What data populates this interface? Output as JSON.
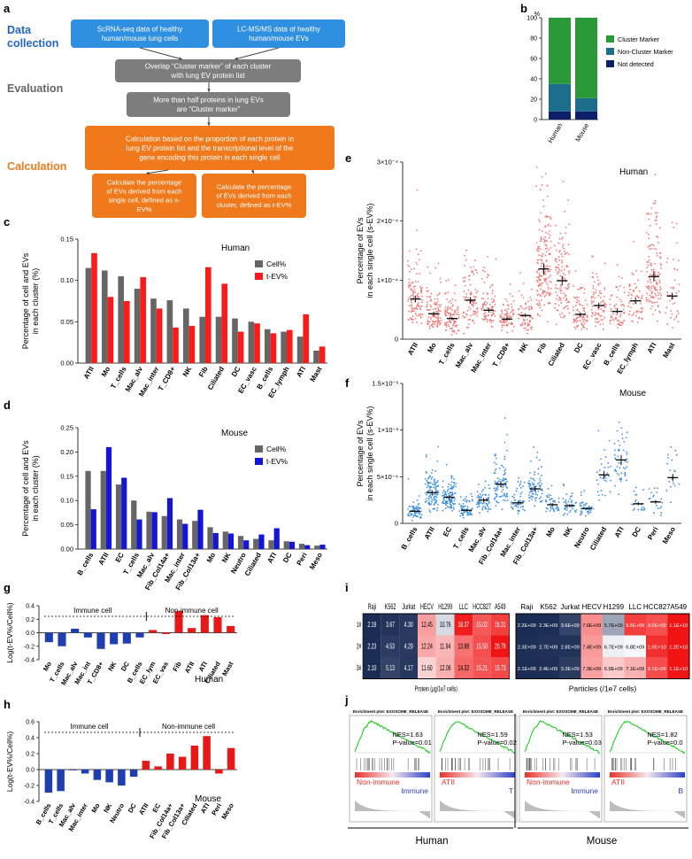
{
  "panel_letters": [
    "a",
    "b",
    "c",
    "d",
    "e",
    "f",
    "g",
    "h",
    "i",
    "j"
  ],
  "colors": {
    "blue_box": "#2f8fe0",
    "gray_box": "#7d7d7d",
    "orange_box": "#f07a1b",
    "label_blue": "#2166c2",
    "label_gray": "#666666",
    "label_orange": "#f07a1b",
    "cell_gray": "#666666",
    "tev_red": "#ff1a1a",
    "tev_blue": "#1515d6",
    "dot_red": "#f07a7a",
    "dot_blue": "#3d8fe0",
    "marker_green": "#2a9a38",
    "nonmarker_teal": "#1b6f8a",
    "notdetected_navy": "#0d1f6b",
    "bar_blue": "#1f3fb0",
    "bar_red": "#e81818",
    "gsea_green": "#1fcc1f"
  },
  "flow": {
    "stage_data_collection": "Data\ncollection",
    "stage_evaluation": "Evaluation",
    "stage_calculation": "Calculation",
    "box_scrna": "ScRNA-seq data of healthy\nhuman/mouse lung cells",
    "box_lcms": "LC-MS/MS  data of healthy\nhuman/mouse EVs",
    "box_overlap": "Overlap “Cluster marker” of each cluster\nwith lung EV protein list",
    "box_half": "More than half proteins in lung EVs\nare “Cluster marker”",
    "box_calc": "Calculation based on the proportion of each protein in\nlung EV protein list and the transcriptional level of the\ngene encoding this protein in each single cell",
    "box_sev": "Calculate the percentage\nof EVs derived from each\nsingle cell, defined as s-\nEV%",
    "box_tev": "Calculate the percentage\nof EVs derived from each\ncluster, defined as t-EV%"
  },
  "chart_data": [
    {
      "panel": "b",
      "type": "bar",
      "stacked": true,
      "ylabel": "%",
      "yticks": [
        "0",
        "20",
        "40",
        "60",
        "80",
        "100"
      ],
      "ylim": [
        0,
        100
      ],
      "categories": [
        "Human",
        "Mouse"
      ],
      "series": [
        {
          "name": "Not detected",
          "values": [
            8,
            8
          ]
        },
        {
          "name": "Non-Cluster Marker",
          "values": [
            27,
            13
          ]
        },
        {
          "name": "Cluster Marker",
          "values": [
            65,
            79
          ]
        }
      ],
      "legend": [
        "Cluster Marker",
        "Non-Cluster Marker",
        "Not detected"
      ]
    },
    {
      "panel": "c",
      "type": "bar",
      "title": "Human",
      "ylabel": "Percentage of cell and EVs\nin each cluster (%)",
      "yticks": [
        "0.00",
        "0.05",
        "0.10",
        "0.15"
      ],
      "ylim": [
        0,
        0.15
      ],
      "categories": [
        "ATII",
        "Mo",
        "T_cells",
        "Mac_alv",
        "Mac_inter",
        "T_CD8+",
        "NK",
        "Fib",
        "Ciliated",
        "DC",
        "EC_vasc",
        "B_cells",
        "EC_lymph",
        "ATI",
        "Mast"
      ],
      "series": [
        {
          "name": "Cell%",
          "values": [
            0.115,
            0.112,
            0.105,
            0.09,
            0.078,
            0.076,
            0.066,
            0.056,
            0.056,
            0.054,
            0.05,
            0.041,
            0.038,
            0.032,
            0.015
          ]
        },
        {
          "name": "t-EV%",
          "values": [
            0.133,
            0.08,
            0.075,
            0.104,
            0.066,
            0.043,
            0.045,
            0.116,
            0.096,
            0.038,
            0.048,
            0.036,
            0.04,
            0.059,
            0.02
          ]
        }
      ]
    },
    {
      "panel": "d",
      "type": "bar",
      "title": "Mouse",
      "ylabel": "Percentage of cell and EVs\nin each cluster (%)",
      "yticks": [
        "0.00",
        "0.05",
        "0.10",
        "0.15",
        "0.20",
        "0.25"
      ],
      "ylim": [
        0,
        0.25
      ],
      "categories": [
        "B_cells",
        "ATII",
        "EC",
        "T_cells",
        "Mac_alv",
        "Fib_Col14a+",
        "Mac_inter",
        "Fib_Col13a+",
        "Mo",
        "NK",
        "Neutro",
        "Ciliated",
        "ATI",
        "DC",
        "Peri",
        "Meso"
      ],
      "series": [
        {
          "name": "Cell%",
          "values": [
            0.161,
            0.161,
            0.133,
            0.1,
            0.077,
            0.068,
            0.061,
            0.058,
            0.045,
            0.036,
            0.027,
            0.021,
            0.018,
            0.016,
            0.011,
            0.007
          ]
        },
        {
          "name": "t-EV%",
          "values": [
            0.082,
            0.21,
            0.147,
            0.061,
            0.076,
            0.105,
            0.052,
            0.081,
            0.033,
            0.032,
            0.018,
            0.03,
            0.043,
            0.015,
            0.008,
            0.009
          ]
        }
      ]
    },
    {
      "panel": "e",
      "type": "scatter",
      "title": "Human",
      "ylabel": "Percentage of EVs\nin each single cell (s-EV%)",
      "yticks": [
        "0",
        "1×10⁻⁴",
        "2×10⁻⁴",
        "3×10⁻⁴"
      ],
      "ylim": [
        0,
        0.0003
      ],
      "categories": [
        "ATII",
        "Mo",
        "T_cells",
        "Mac_alv",
        "Mac_inter",
        "T_CD8+",
        "NK",
        "Fib",
        "Ciliated",
        "DC",
        "EC_vasc",
        "B_cells",
        "EC_lymph",
        "ATI",
        "Mast"
      ],
      "means": [
        6.8e-05,
        4.3e-05,
        3.5e-05,
        6.6e-05,
        4.9e-05,
        3.4e-05,
        4e-05,
        0.000119,
        9.9e-05,
        4.2e-05,
        5.7e-05,
        4.7e-05,
        6.5e-05,
        0.000106,
        7.3e-05
      ]
    },
    {
      "panel": "f",
      "type": "scatter",
      "title": "Mouse",
      "ylabel": "Percentage of EVs\nin each single cell (s-EV%)",
      "yticks": [
        "0",
        "5×10⁻⁴",
        "1×10⁻³",
        "1.5×10⁻³"
      ],
      "ylim": [
        0,
        0.0015
      ],
      "categories": [
        "B_cells",
        "ATII",
        "EC",
        "T_cells",
        "Mac_alv",
        "Fib_Col14a+",
        "Mac_inter",
        "Fib_Col13a+",
        "Mo",
        "NK",
        "Neutro",
        "Ciliated",
        "ATI",
        "DC",
        "Peri",
        "Meso"
      ],
      "means": [
        0.00013,
        0.00033,
        0.00028,
        0.00014,
        0.00025,
        0.00042,
        0.00022,
        0.00037,
        0.0002,
        0.00019,
        0.00016,
        0.00052,
        0.00068,
        0.00021,
        0.00023,
        0.00049
      ]
    },
    {
      "panel": "g",
      "type": "bar",
      "title": "Human",
      "ylabel": "Log(t-EV%/Cell%)",
      "yticks": [
        "-0.4",
        "-0.2",
        "0.0",
        "0.2",
        "0.4"
      ],
      "ylim": [
        -0.4,
        0.4
      ],
      "group_labels": [
        "Immune cell",
        "Non-immune cell"
      ],
      "categories": [
        "Mo",
        "T_cells",
        "Mac_alv",
        "Mac_int",
        "T_CD8+",
        "NK",
        "DC",
        "B_cells",
        "EC_lym",
        "EC_vas",
        "Fib",
        "ATII",
        "ATI",
        "Ciliated",
        "Mast"
      ],
      "values": [
        -0.14,
        -0.2,
        0.06,
        -0.07,
        -0.24,
        -0.17,
        -0.16,
        -0.07,
        0.04,
        -0.02,
        0.32,
        0.07,
        0.26,
        0.23,
        0.1
      ]
    },
    {
      "panel": "h",
      "type": "bar",
      "title": "Mouse",
      "ylabel": "Log(t-EV%/Cell%)",
      "yticks": [
        "-0.4",
        "-0.2",
        "0.0",
        "0.2",
        "0.4",
        "0.6"
      ],
      "ylim": [
        -0.4,
        0.6
      ],
      "group_labels": [
        "Immune cell",
        "Non-immune cell"
      ],
      "categories": [
        "B_cells",
        "T_cells",
        "Mac_alv",
        "Mac_inter",
        "Mo",
        "NK",
        "Neutro",
        "DC",
        "ATII",
        "EC",
        "Fib_Col14a+",
        "Fib_Col13a+",
        "Ciliated",
        "ATI",
        "Peri",
        "Meso"
      ],
      "values": [
        -0.29,
        -0.27,
        -0.01,
        -0.05,
        -0.13,
        -0.16,
        -0.2,
        -0.09,
        0.11,
        0.04,
        0.2,
        0.16,
        0.3,
        0.42,
        -0.05,
        0.27
      ]
    },
    {
      "panel": "i",
      "type": "heatmap",
      "columns": [
        "Raji",
        "K562",
        "Jurkat",
        "HECV",
        "H1299",
        "LLC",
        "HCC827",
        "A549"
      ],
      "rows": [
        "1#",
        "2#",
        "3#"
      ],
      "protein": {
        "label": "Protein (μg/1e7 cells)",
        "values": [
          [
            "2.19",
            "3.67",
            "4.30",
            "12.45",
            "10.76",
            "18.37",
            "15.02",
            "16.31"
          ],
          [
            "2.23",
            "4.53",
            "4.29",
            "12.24",
            "11.94",
            "13.88",
            "15.50",
            "20.78"
          ],
          [
            "2.10",
            "5.13",
            "4.17",
            "11.60",
            "12.06",
            "14.32",
            "15.21",
            "15.73"
          ]
        ]
      },
      "particles": {
        "label": "Particles (/1e7 cells)",
        "values": [
          [
            "2.2E+09",
            "2.3E+09",
            "3.6E+09",
            "7.6E+09",
            "5.7E+09",
            "9.5E+09",
            "9.0E+09",
            "1.1E+10"
          ],
          [
            "2.3E+09",
            "2.7E+09",
            "2.8E+09",
            "7.4E+09",
            "6.7E+09",
            "6.8E+09",
            "1.0E+10",
            "1.2E+10"
          ],
          [
            "2.1E+09",
            "2.4E+09",
            "3.3E+09",
            "7.3E+09",
            "6.9E+09",
            "7.1E+09",
            "9.1E+09",
            "1.1E+10"
          ]
        ]
      }
    },
    {
      "panel": "j",
      "type": "line",
      "plots": [
        {
          "title": "Enrichment plot: EXOSOME_RELEASE",
          "nes": "NES=1.63",
          "pvalue": "P-value=0.01",
          "left": "Non-immune",
          "right": "Immune"
        },
        {
          "title": "Enrichment plot: EXOSOME_RELEASE",
          "nes": "NES=1.59",
          "pvalue": "P-value=0.02",
          "left": "ATII",
          "right": "T"
        },
        {
          "title": "Enrichment plot: EXOSOME_RELEASE",
          "nes": "NES=1.53",
          "pvalue": "P-value=0.03",
          "left": "Non-immune",
          "right": "Immune"
        },
        {
          "title": "Enrichment plot: EXOSOME_RELEASE",
          "nes": "NES=1.82",
          "pvalue": "P-value=0.0",
          "left": "ATII",
          "right": "B"
        }
      ],
      "groups": [
        "Human",
        "Mouse"
      ]
    }
  ],
  "legends": {
    "cell_label": "Cell%",
    "tev_label": "t-EV%"
  }
}
